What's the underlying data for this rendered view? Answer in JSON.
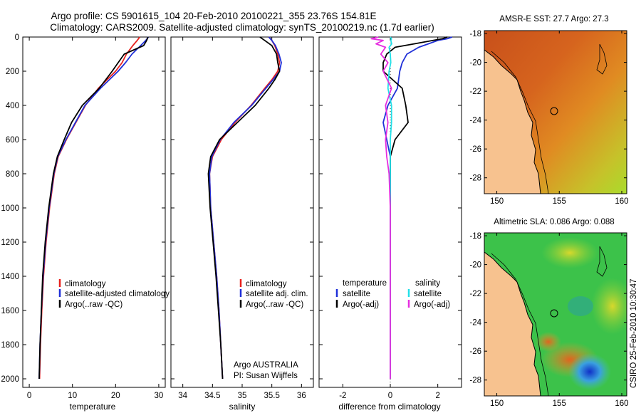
{
  "title": {
    "line1": "Argo profile: CS 5901615_104 20-Feb-2010 20100221_355 23.76S 154.81E",
    "line2": "Climatology: CARS2009. Satellite-adjusted climatology: synTS_20100219.nc (1.7d earlier)"
  },
  "colors": {
    "climatology": "#e8201c",
    "satellite": "#1f2fd8",
    "argo": "#000000",
    "salinity_satellite": "#22e0e8",
    "salinity_argo": "#e62ee0"
  },
  "chart_data": [
    {
      "id": "temperature",
      "type": "line",
      "xlabel": "temperature",
      "ylabel": "",
      "xlim": [
        -1.5,
        31.5
      ],
      "ylim": [
        2050,
        0
      ],
      "xticks": [
        "0",
        "10",
        "20",
        "30"
      ],
      "yticks": [
        "0",
        "200",
        "400",
        "600",
        "800",
        "1000",
        "1200",
        "1400",
        "1600",
        "1800",
        "2000"
      ],
      "legend": [
        "climatology",
        "satellite-adjusted climatology",
        "Argo(..raw -QC)"
      ],
      "depth": [
        0,
        20,
        50,
        100,
        150,
        200,
        300,
        400,
        500,
        600,
        700,
        800,
        1000,
        1200,
        1400,
        1600,
        1800,
        2000
      ],
      "series": [
        {
          "name": "climatology",
          "values": [
            25.6,
            25.0,
            24.0,
            22.5,
            21.5,
            20.0,
            16.0,
            13.0,
            10.8,
            8.6,
            6.7,
            5.8,
            4.7,
            3.9,
            3.3,
            2.9,
            2.6,
            2.4
          ]
        },
        {
          "name": "satellite-adjusted climatology",
          "values": [
            27.6,
            27.0,
            25.8,
            23.8,
            22.3,
            20.6,
            16.5,
            12.9,
            10.7,
            8.5,
            6.6,
            5.7,
            4.6,
            3.8,
            3.2,
            2.8,
            2.5,
            2.3
          ]
        },
        {
          "name": "Argo(..raw -QC)",
          "values": [
            27.5,
            27.2,
            26.5,
            22.0,
            20.6,
            19.2,
            16.2,
            12.3,
            9.8,
            8.1,
            6.5,
            5.6,
            4.5,
            3.7,
            3.1,
            2.8,
            2.5,
            2.3
          ]
        }
      ]
    },
    {
      "id": "salinity",
      "type": "line",
      "xlabel": "salinity",
      "ylabel": "",
      "xlim": [
        33.8,
        36.2
      ],
      "ylim": [
        2050,
        0
      ],
      "xticks": [
        "34",
        "34.5",
        "35",
        "35.5",
        "36"
      ],
      "legend": [
        "climatology",
        "satellite adj. clim.",
        "Argo(..raw -QC)"
      ],
      "annotation": [
        "Argo AUSTRALIA",
        "PI: Susan Wijffels"
      ],
      "depth": [
        0,
        20,
        50,
        100,
        150,
        200,
        250,
        300,
        400,
        500,
        600,
        700,
        800,
        1000,
        1200,
        1400,
        1600,
        1800,
        2000
      ],
      "series": [
        {
          "name": "climatology",
          "values": [
            35.45,
            35.5,
            35.55,
            35.6,
            35.63,
            35.6,
            35.5,
            35.38,
            35.15,
            34.88,
            34.65,
            34.5,
            34.45,
            34.47,
            34.52,
            34.57,
            34.61,
            34.64,
            34.67
          ]
        },
        {
          "name": "satellite adj. clim.",
          "values": [
            35.45,
            35.5,
            35.56,
            35.62,
            35.66,
            35.63,
            35.52,
            35.4,
            35.16,
            34.86,
            34.63,
            34.49,
            34.45,
            34.47,
            34.52,
            34.57,
            34.61,
            34.64,
            34.67
          ]
        },
        {
          "name": "Argo(..raw -QC)",
          "values": [
            35.3,
            35.38,
            35.5,
            35.58,
            35.6,
            35.63,
            35.55,
            35.45,
            35.22,
            34.92,
            34.62,
            34.47,
            34.43,
            34.46,
            34.51,
            34.56,
            34.6,
            34.64,
            34.67
          ]
        }
      ]
    },
    {
      "id": "difference",
      "type": "line",
      "xlabel": "difference from climatology",
      "ylabel": "",
      "xlim": [
        -3.0,
        3.0
      ],
      "ylim": [
        2050,
        0
      ],
      "xticks": [
        "-2",
        "0",
        "2"
      ],
      "legend_temperature": [
        "temperature",
        "satellite",
        "Argo(-adj)"
      ],
      "legend_salinity": [
        "salinity",
        "satellite",
        "Argo(-adj)"
      ],
      "depth": [
        0,
        10,
        20,
        40,
        60,
        100,
        150,
        200,
        300,
        400,
        500,
        600,
        700,
        800,
        1000,
        1500,
        2000
      ],
      "series": [
        {
          "name": "temperature satellite",
          "values": [
            2.6,
            2.4,
            2.0,
            1.6,
            1.2,
            0.7,
            0.5,
            0.4,
            0.3,
            -0.1,
            -0.3,
            -0.15,
            0.0,
            0.0,
            0.0,
            0.0,
            0.0
          ]
        },
        {
          "name": "temperature Argo(-adj)",
          "values": [
            2.4,
            2.2,
            1.8,
            1.0,
            0.2,
            -0.15,
            -0.3,
            -0.3,
            0.5,
            0.65,
            0.75,
            0.2,
            0.0,
            0.0,
            0.0,
            0.0,
            0.0
          ]
        },
        {
          "name": "salinity satellite",
          "values": [
            0.0,
            0.05,
            0.02,
            0.06,
            -0.05,
            0.0,
            0.02,
            -0.05,
            -0.1,
            0.05,
            0.05,
            0.0,
            0.0,
            0.0,
            0.0,
            0.0,
            0.0
          ]
        },
        {
          "name": "salinity Argo(-adj)",
          "values": [
            -0.5,
            -0.8,
            -0.3,
            -0.6,
            -0.2,
            -0.4,
            -0.1,
            -0.3,
            0.05,
            -0.2,
            -0.1,
            -0.2,
            -0.15,
            -0.05,
            0.0,
            0.0,
            0.0
          ]
        }
      ]
    }
  ],
  "maps": [
    {
      "id": "sst",
      "title": "AMSR-E SST: 27.7 Argo: 27.3",
      "yticks": [
        "-18",
        "-20",
        "-22",
        "-24",
        "-26",
        "-28"
      ],
      "xticks": [
        "150",
        "155",
        "160"
      ]
    },
    {
      "id": "sla",
      "title": "Altimetric SLA: 0.086 Argo: 0.088",
      "yticks": [
        "-18",
        "-20",
        "-22",
        "-24",
        "-26",
        "-28"
      ],
      "xticks": [
        "150",
        "155",
        "160"
      ]
    }
  ],
  "footer": "CSIRO 25-Feb-2010 10:30:47"
}
